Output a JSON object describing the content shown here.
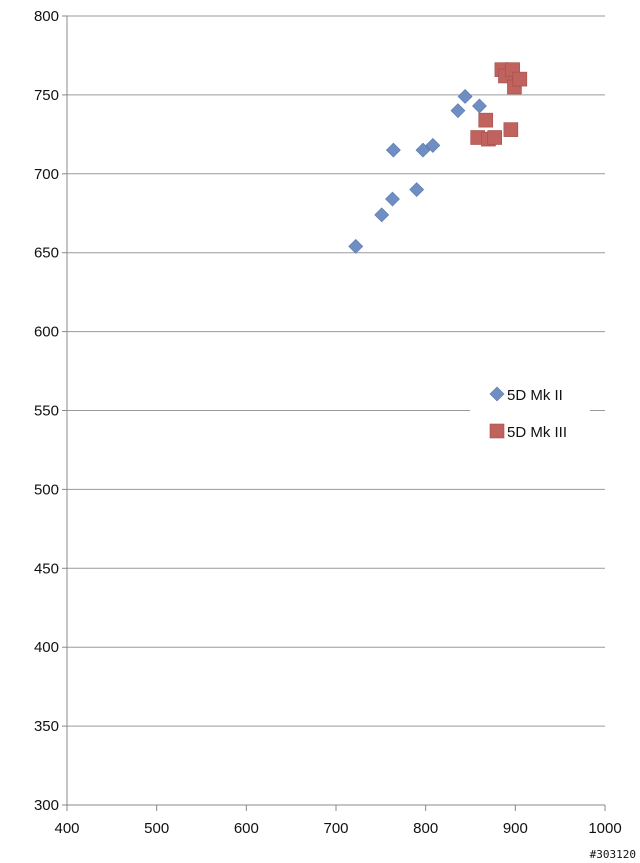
{
  "watermark": "#303120",
  "chart_data": {
    "type": "scatter",
    "title": "",
    "xlabel": "",
    "ylabel": "",
    "xlim": [
      400,
      1000
    ],
    "ylim": [
      300,
      800
    ],
    "x_ticks": [
      400,
      500,
      600,
      700,
      800,
      900,
      1000
    ],
    "y_ticks": [
      300,
      350,
      400,
      450,
      500,
      550,
      600,
      650,
      700,
      750,
      800
    ],
    "grid": "horizontal",
    "legend_position": "right",
    "series": [
      {
        "name": "5D Mk II",
        "marker": "diamond",
        "color": "#6f8fc4",
        "points": [
          [
            722,
            654
          ],
          [
            751,
            674
          ],
          [
            763,
            684
          ],
          [
            764,
            715
          ],
          [
            790,
            690
          ],
          [
            797,
            715
          ],
          [
            808,
            718
          ],
          [
            836,
            740
          ],
          [
            844,
            749
          ],
          [
            860,
            743
          ]
        ]
      },
      {
        "name": "5D Mk III",
        "marker": "square",
        "color": "#c0625e",
        "points": [
          [
            858,
            723
          ],
          [
            867,
            734
          ],
          [
            870,
            722
          ],
          [
            877,
            723
          ],
          [
            885,
            766
          ],
          [
            889,
            762
          ],
          [
            895,
            728
          ],
          [
            897,
            766
          ],
          [
            899,
            755
          ],
          [
            905,
            760
          ]
        ]
      }
    ]
  }
}
